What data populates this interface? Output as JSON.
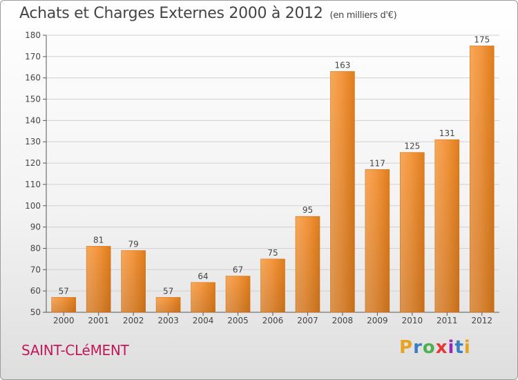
{
  "title": "Achats et Charges Externes 2000 à 2012",
  "subtitle": "(en milliers d'€)",
  "city": "SAINT-CLéMENT",
  "logo": {
    "letters": [
      "P",
      "r",
      "o",
      "x",
      "i",
      "t",
      "i"
    ],
    "colors": [
      "#e8a320",
      "#3a7fc4",
      "#4caf50",
      "#e53935",
      "#9c27b0",
      "#3a7fc4",
      "#e8a320"
    ]
  },
  "colors": {
    "bar": "#f08a24",
    "bar_light": "#f7a85a",
    "grid": "#d0d0d0",
    "text": "#444444"
  },
  "chart_data": {
    "type": "bar",
    "categories": [
      "2000",
      "2001",
      "2002",
      "2003",
      "2004",
      "2005",
      "2006",
      "2007",
      "2008",
      "2009",
      "2010",
      "2011",
      "2012"
    ],
    "values": [
      57,
      81,
      79,
      57,
      64,
      67,
      75,
      95,
      163,
      117,
      125,
      131,
      175
    ],
    "ylim": [
      50,
      180
    ],
    "yticks": [
      50,
      60,
      70,
      80,
      90,
      100,
      110,
      120,
      130,
      140,
      150,
      160,
      170,
      180
    ],
    "grid": true
  }
}
